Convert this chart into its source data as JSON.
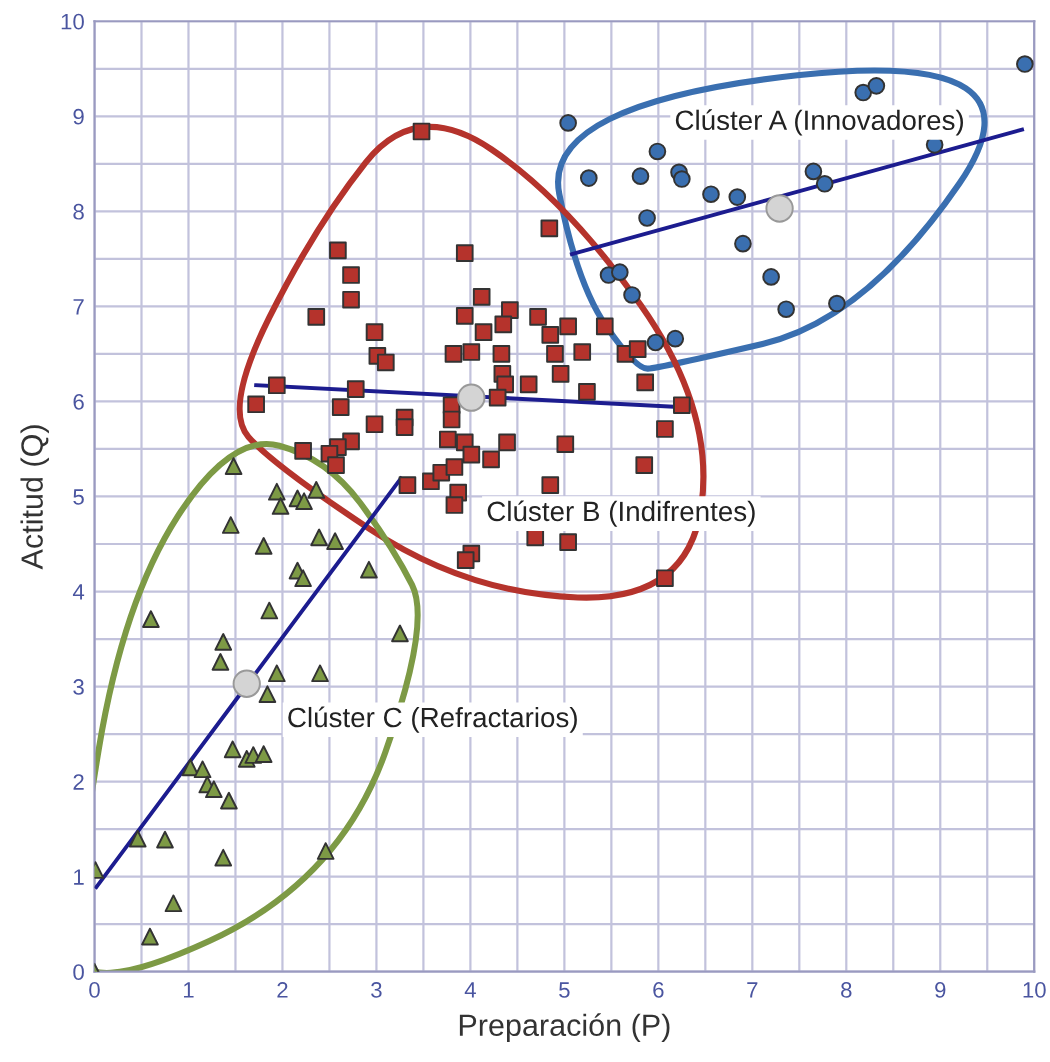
{
  "chart_data": {
    "type": "scatter",
    "xlabel": "Preparación (P)",
    "ylabel": "Actitud (Q)",
    "xlim": [
      0,
      10
    ],
    "ylim": [
      0,
      10
    ],
    "xticks": [
      0,
      {
        "value": 0.5,
        "label": null
      },
      1,
      {
        "value": 1.5,
        "label": null
      },
      2,
      {
        "value": 2.5,
        "label": null
      },
      3,
      {
        "value": 3.5,
        "label": null
      },
      4,
      {
        "value": 4.5,
        "label": null
      },
      5,
      {
        "value": 5.5,
        "label": null
      },
      6,
      {
        "value": 6.5,
        "label": null
      },
      7,
      {
        "value": 7.5,
        "label": null
      },
      8,
      {
        "value": 8.5,
        "label": null
      },
      9,
      {
        "value": 9.5,
        "label": null
      },
      10
    ],
    "yticks": [
      0,
      {
        "value": 0.5,
        "label": null
      },
      1,
      {
        "value": 1.5,
        "label": null
      },
      2,
      {
        "value": 2.5,
        "label": null
      },
      3,
      {
        "value": 3.5,
        "label": null
      },
      4,
      {
        "value": 4.5,
        "label": null
      },
      5,
      {
        "value": 5.5,
        "label": null
      },
      6,
      {
        "value": 6.5,
        "label": null
      },
      7,
      {
        "value": 7.5,
        "label": null
      },
      8,
      {
        "value": 8.5,
        "label": null
      },
      9,
      {
        "value": 9.5,
        "label": null
      },
      10
    ],
    "grid": true,
    "legend": false,
    "series": [
      {
        "marker": "circle",
        "color": "#3a6fb0",
        "x": [
          5.04,
          5.99,
          5.26,
          5.81,
          6.22,
          6.25,
          6.56,
          6.84,
          5.88,
          6.9,
          5.47,
          5.59,
          5.72,
          5.97,
          6.18,
          7.2,
          7.36,
          7.9,
          7.65,
          7.77,
          8.18,
          8.32,
          8.94,
          9.9
        ],
        "values": [
          8.93,
          8.63,
          8.35,
          8.37,
          8.41,
          8.34,
          8.18,
          8.15,
          7.93,
          7.66,
          7.33,
          7.36,
          7.12,
          6.62,
          6.66,
          7.31,
          6.97,
          7.03,
          8.42,
          8.29,
          9.25,
          9.32,
          8.7,
          9.55
        ]
      },
      {
        "marker": "square",
        "color": "#b5332c",
        "x": [
          3.48,
          4.84,
          2.59,
          3.94,
          2.73,
          2.73,
          2.36,
          4.12,
          3.94,
          4.42,
          4.35,
          4.14,
          4.72,
          4.85,
          5.04,
          5.43,
          2.98,
          3.01,
          3.1,
          3.82,
          4.01,
          4.33,
          4.9,
          5.19,
          5.65,
          5.78,
          4.34,
          4.96,
          5.86,
          4.37,
          4.62,
          5.24,
          1.94,
          2.78,
          1.72,
          2.62,
          3.8,
          4.29,
          6.25,
          3.8,
          3.3,
          3.3,
          2.98,
          6.07,
          3.76,
          3.94,
          4.39,
          5.01,
          2.73,
          2.59,
          2.22,
          2.5,
          2.57,
          4.01,
          4.22,
          5.85,
          3.33,
          3.58,
          3.69,
          3.83,
          3.87,
          3.83,
          4.85,
          4.69,
          5.04,
          4.01,
          3.95,
          6.07
        ],
        "values": [
          8.84,
          7.82,
          7.59,
          7.56,
          7.33,
          7.07,
          6.89,
          7.1,
          6.9,
          6.96,
          6.81,
          6.73,
          6.89,
          6.7,
          6.79,
          6.79,
          6.73,
          6.48,
          6.41,
          6.5,
          6.52,
          6.5,
          6.5,
          6.52,
          6.5,
          6.55,
          6.29,
          6.29,
          6.2,
          6.18,
          6.18,
          6.1,
          6.17,
          6.13,
          5.97,
          5.94,
          5.96,
          6.04,
          5.96,
          5.81,
          5.83,
          5.73,
          5.76,
          5.71,
          5.6,
          5.57,
          5.57,
          5.55,
          5.58,
          5.52,
          5.48,
          5.45,
          5.33,
          5.44,
          5.39,
          5.33,
          5.12,
          5.16,
          5.25,
          5.31,
          5.04,
          4.91,
          5.12,
          4.57,
          4.52,
          4.4,
          4.33,
          4.14
        ]
      },
      {
        "marker": "triangle",
        "color": "#7d9a45",
        "x": [
          1.48,
          1.45,
          1.94,
          1.98,
          2.16,
          2.23,
          2.36,
          1.8,
          2.39,
          2.56,
          2.16,
          2.22,
          2.92,
          0.6,
          1.86,
          1.37,
          1.34,
          1.94,
          2.4,
          3.25,
          1.84,
          1.47,
          1.62,
          1.69,
          1.8,
          1.02,
          1.15,
          1.2,
          1.27,
          1.43,
          0.46,
          0.75,
          1.37,
          2.46,
          0.01,
          0.84,
          0.59,
          0.0
        ],
        "values": [
          5.32,
          4.7,
          5.05,
          4.9,
          4.98,
          4.95,
          5.07,
          4.48,
          4.57,
          4.53,
          4.22,
          4.14,
          4.23,
          3.71,
          3.8,
          3.47,
          3.26,
          3.14,
          3.14,
          3.56,
          2.92,
          2.34,
          2.24,
          2.28,
          2.29,
          2.15,
          2.13,
          1.97,
          1.92,
          1.8,
          1.4,
          1.39,
          1.2,
          1.27,
          1.07,
          0.72,
          0.37,
          0.0
        ]
      },
      {
        "type": "line",
        "color": "#1c1c8f",
        "x": [
          5.08,
          9.87
        ],
        "values": [
          7.55,
          8.86
        ]
      },
      {
        "type": "line",
        "color": "#1c1c8f",
        "x": [
          1.72,
          6.25
        ],
        "values": [
          6.17,
          5.94
        ]
      },
      {
        "type": "line",
        "color": "#1c1c8f",
        "x": [
          0.02,
          3.26
        ],
        "values": [
          0.89,
          5.19
        ]
      },
      {
        "marker": "circle",
        "color": "#d4d4d4",
        "x": [
          7.29,
          4.01,
          1.62
        ],
        "values": [
          8.03,
          6.04,
          3.03
        ]
      }
    ],
    "annotations": [
      "Clúster A (Innovadores)",
      "Clúster B (Indifrentes)",
      "Clúster C (Refractarios)"
    ]
  }
}
